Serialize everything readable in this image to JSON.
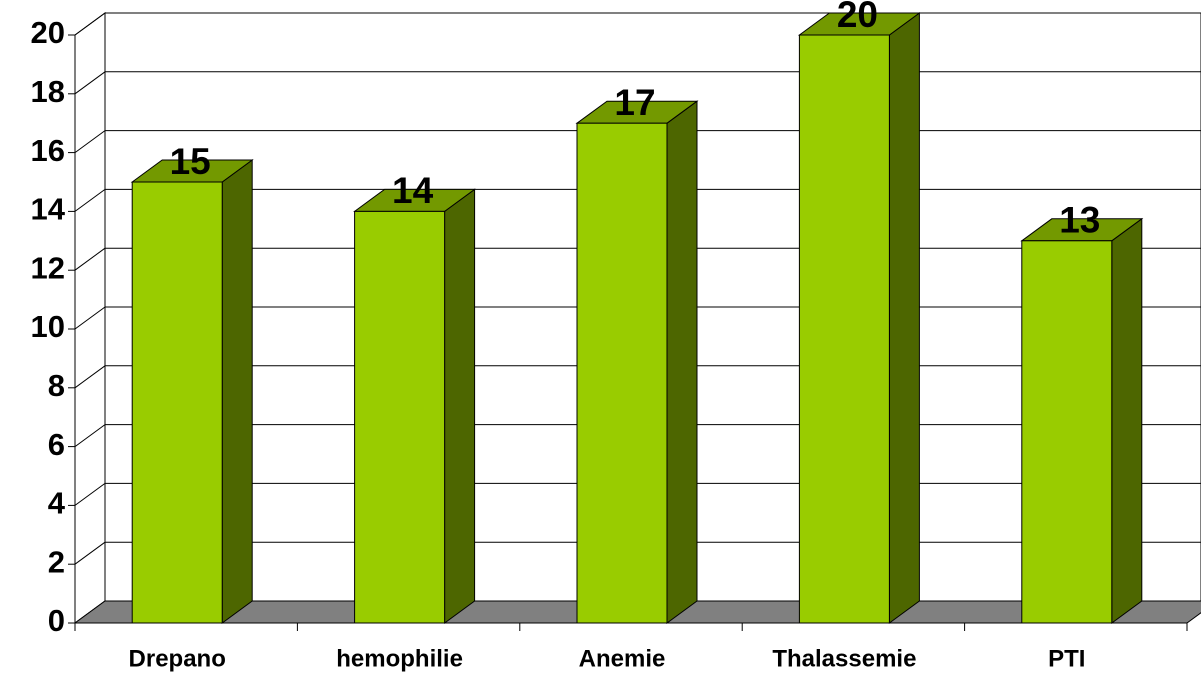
{
  "chart_data": {
    "type": "bar3d",
    "categories": [
      "Drepano",
      "hemophilie",
      "Anemie",
      "Thalassemie",
      "PTI"
    ],
    "values": [
      15,
      14,
      17,
      20,
      13
    ],
    "color": "#99cc00",
    "side_color": "#4d6600",
    "top_color": "#739900",
    "ylim": [
      0,
      20
    ],
    "yticks": [
      0,
      2,
      4,
      6,
      8,
      10,
      12,
      14,
      16,
      18,
      20
    ],
    "grid": true
  }
}
